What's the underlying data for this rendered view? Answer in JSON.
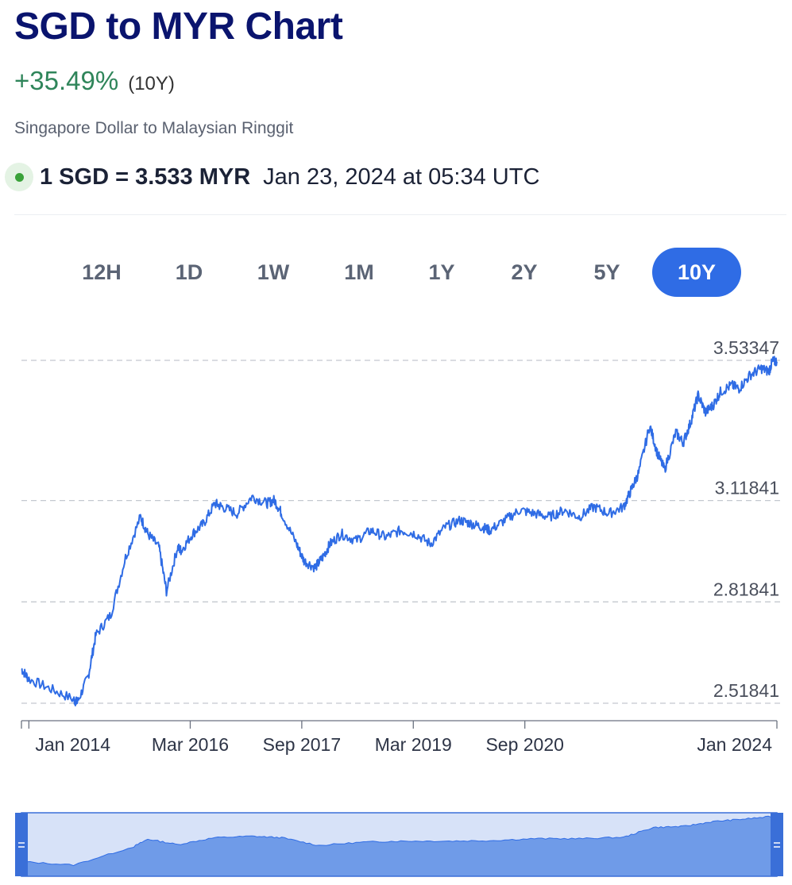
{
  "header": {
    "title": "SGD to MYR Chart",
    "change": "+35.49%",
    "change_period": "(10Y)",
    "subtitle": "Singapore Dollar to Malaysian Ringgit"
  },
  "rate": {
    "text": "1 SGD = 3.533 MYR",
    "timestamp": "Jan 23, 2024 at 05:34 UTC"
  },
  "ranges": [
    {
      "label": "12H",
      "active": false
    },
    {
      "label": "1D",
      "active": false
    },
    {
      "label": "1W",
      "active": false
    },
    {
      "label": "1M",
      "active": false
    },
    {
      "label": "1Y",
      "active": false
    },
    {
      "label": "2Y",
      "active": false
    },
    {
      "label": "5Y",
      "active": false
    },
    {
      "label": "10Y",
      "active": true
    }
  ],
  "colors": {
    "line": "#2f6ce5",
    "navigator_fill": "#6f9be8",
    "navigator_bg": "#d7e2f8",
    "active_tab": "#2f6ce5",
    "positive_change": "#2f855a",
    "title": "#0a146e"
  },
  "chart_data": {
    "type": "line",
    "title": "SGD to MYR Chart",
    "xlabel": "",
    "ylabel": "",
    "ylim": [
      2.51841,
      3.53347
    ],
    "xlim": [
      2013.9,
      2024.06
    ],
    "y_ticks": [
      "3.53347",
      "3.11841",
      "2.81841",
      "2.51841"
    ],
    "x_ticks": [
      {
        "label": "Jan 2014",
        "x": 2014.0
      },
      {
        "label": "Mar 2016",
        "x": 2016.17
      },
      {
        "label": "Sep 2017",
        "x": 2017.67
      },
      {
        "label": "Mar 2019",
        "x": 2019.17
      },
      {
        "label": "Sep 2020",
        "x": 2020.67
      },
      {
        "label": "Jan 2024",
        "x": 2024.06
      }
    ],
    "grid": true,
    "legend": "none",
    "series": [
      {
        "x": [
          2013.9,
          2014.0,
          2014.3,
          2014.6,
          2014.65,
          2014.8,
          2014.9,
          2015.1,
          2015.3,
          2015.5,
          2015.6,
          2015.75,
          2015.85,
          2016.0,
          2016.05,
          2016.2,
          2016.35,
          2016.5,
          2016.6,
          2016.8,
          2017.0,
          2017.2,
          2017.3,
          2017.4,
          2017.6,
          2017.7,
          2017.85,
          2017.95,
          2018.05,
          2018.2,
          2018.4,
          2018.6,
          2018.8,
          2019.0,
          2019.2,
          2019.4,
          2019.6,
          2019.8,
          2019.95,
          2020.1,
          2020.2,
          2020.4,
          2020.6,
          2020.8,
          2021.0,
          2021.2,
          2021.4,
          2021.6,
          2021.8,
          2022.0,
          2022.1,
          2022.2,
          2022.35,
          2022.45,
          2022.55,
          2022.7,
          2022.8,
          2022.9,
          2023.0,
          2023.1,
          2023.2,
          2023.3,
          2023.45,
          2023.55,
          2023.7,
          2023.85,
          2023.95,
          2024.0,
          2024.06
        ],
        "values": [
          2.62,
          2.59,
          2.56,
          2.53,
          2.52,
          2.6,
          2.72,
          2.78,
          2.95,
          3.07,
          3.02,
          2.98,
          2.85,
          2.98,
          2.97,
          3.02,
          3.05,
          3.11,
          3.1,
          3.08,
          3.13,
          3.11,
          3.12,
          3.08,
          2.99,
          2.94,
          2.92,
          2.95,
          2.99,
          3.02,
          3.0,
          3.03,
          3.01,
          3.03,
          3.02,
          2.99,
          3.04,
          3.06,
          3.05,
          3.04,
          3.03,
          3.06,
          3.09,
          3.08,
          3.07,
          3.09,
          3.07,
          3.1,
          3.08,
          3.1,
          3.15,
          3.2,
          3.34,
          3.26,
          3.21,
          3.32,
          3.29,
          3.35,
          3.43,
          3.38,
          3.4,
          3.44,
          3.46,
          3.45,
          3.49,
          3.51,
          3.5,
          3.53,
          3.53
        ]
      }
    ]
  },
  "navigator": {
    "x": [
      2013.9,
      2014.6,
      2015.4,
      2015.6,
      2016.0,
      2016.5,
      2017.0,
      2017.4,
      2017.9,
      2018.5,
      2019.0,
      2019.6,
      2020.2,
      2020.8,
      2021.4,
      2022.0,
      2022.4,
      2022.8,
      2023.2,
      2023.6,
      2024.06
    ],
    "values": [
      2.6,
      2.53,
      2.9,
      3.06,
      2.95,
      3.09,
      3.12,
      3.09,
      2.93,
      3.0,
      3.02,
      3.02,
      3.03,
      3.07,
      3.07,
      3.1,
      3.3,
      3.32,
      3.42,
      3.47,
      3.53
    ]
  }
}
